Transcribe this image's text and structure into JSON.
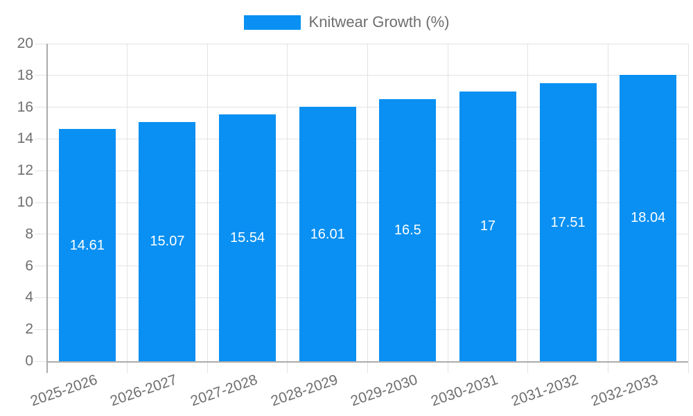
{
  "legend": {
    "items": [
      {
        "label": "Knitwear Growth (%)",
        "color": "#0990f2"
      }
    ]
  },
  "chart_data": {
    "type": "bar",
    "title": "",
    "categories": [
      "2025-2026",
      "2026-2027",
      "2027-2028",
      "2028-2029",
      "2029-2030",
      "2030-2031",
      "2031-2032",
      "2032-2033"
    ],
    "series": [
      {
        "name": "Knitwear Growth (%)",
        "color": "#0990f2",
        "values": [
          14.61,
          15.07,
          15.54,
          16.01,
          16.5,
          17,
          17.51,
          18.04
        ]
      }
    ],
    "data_labels": [
      "14.61",
      "15.07",
      "15.54",
      "16.01",
      "16.5",
      "17",
      "17.51",
      "18.04"
    ],
    "xlabel": "",
    "ylabel": "",
    "ylim": [
      0,
      20
    ],
    "yticks": [
      0,
      2,
      4,
      6,
      8,
      10,
      12,
      14,
      16,
      18,
      20
    ],
    "grid": true,
    "legend_position": "top-center",
    "colors": {
      "bar": "#0990f2",
      "gridline": "#e3e3e3",
      "axis_line": "#ababab",
      "tick_text": "#6e6e6e",
      "data_label_text": "#ffffff"
    }
  }
}
